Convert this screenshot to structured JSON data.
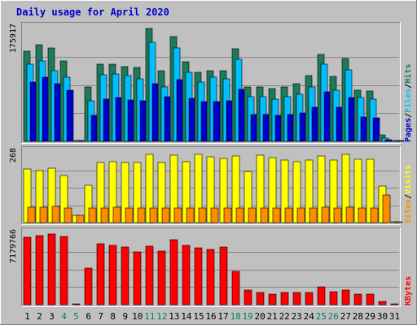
{
  "chart_data": {
    "type": "bar",
    "title": "Daily usage for April 2020",
    "categories": [
      "1",
      "2",
      "3",
      "4",
      "5",
      "6",
      "7",
      "8",
      "9",
      "10",
      "11",
      "12",
      "13",
      "14",
      "15",
      "16",
      "17",
      "18",
      "19",
      "20",
      "21",
      "22",
      "23",
      "24",
      "25",
      "26",
      "27",
      "28",
      "29",
      "30",
      "31"
    ],
    "weekend_days": [
      "4",
      "5",
      "11",
      "12",
      "18",
      "19",
      "25",
      "26"
    ],
    "panels": [
      {
        "id": "hits",
        "ymax_label": "175917",
        "ylim": [
          0,
          175917
        ],
        "right_labels": [
          "Pages",
          "/",
          "Files",
          "/",
          "Hits"
        ],
        "series": [
          {
            "name": "Hits",
            "color": "#1e7a5a",
            "values": [
              140000,
              150000,
              145000,
              125000,
              0,
              85000,
              120000,
              120000,
              117000,
              115000,
              175917,
              110000,
              163000,
              124000,
              108000,
              110000,
              110000,
              144000,
              85000,
              85000,
              82000,
              85000,
              90000,
              103000,
              135000,
              101000,
              129000,
              80000,
              78000,
              10000,
              0
            ]
          },
          {
            "name": "Files",
            "color": "#00bfff",
            "values": [
              120000,
              125000,
              110000,
              100000,
              0,
              63000,
              104000,
              105000,
              102000,
              98000,
              154000,
              85000,
              146000,
              108000,
              92000,
              100000,
              98000,
              128000,
              70000,
              70000,
              66000,
              70000,
              73000,
              85000,
              120000,
              80000,
              112000,
              68000,
              66000,
              5000,
              0
            ]
          },
          {
            "name": "Pages",
            "color": "#0000cd",
            "values": [
              93000,
              100000,
              90000,
              80000,
              0,
              40000,
              66000,
              68000,
              65000,
              63000,
              90000,
              70000,
              96000,
              67000,
              62000,
              62000,
              63000,
              81000,
              42000,
              42000,
              40000,
              42000,
              44000,
              53000,
              77000,
              53000,
              68000,
              38000,
              37000,
              2000,
              0
            ]
          }
        ]
      },
      {
        "id": "visits",
        "ymax_label": "268",
        "ylim": [
          0,
          268
        ],
        "right_labels": [
          "Sites",
          "/",
          "Visits"
        ],
        "series": [
          {
            "name": "Visits",
            "color": "#ffff00",
            "values": [
              205,
              200,
              210,
              180,
              28,
              143,
              230,
              233,
              230,
              230,
              263,
              230,
              260,
              235,
              262,
              253,
              245,
              255,
              195,
              258,
              250,
              240,
              233,
              240,
              255,
              240,
              263,
              243,
              243,
              140,
              0
            ]
          },
          {
            "name": "Sites",
            "color": "#ff8c00",
            "values": [
              58,
              60,
              62,
              55,
              28,
              55,
              55,
              58,
              55,
              55,
              55,
              55,
              55,
              55,
              55,
              55,
              55,
              57,
              55,
              55,
              55,
              55,
              55,
              55,
              58,
              55,
              58,
              55,
              55,
              105,
              0
            ]
          }
        ]
      },
      {
        "id": "kbytes",
        "ymax_label": "7179766",
        "ylim": [
          0,
          7179766
        ],
        "right_labels": [
          "KBytes"
        ],
        "series": [
          {
            "name": "KBytes",
            "color": "#ff0000",
            "values": [
              6850000,
              7000000,
              7179766,
              6950000,
              0,
              3750000,
              6150000,
              6000000,
              5850000,
              5350000,
              5950000,
              5450000,
              6600000,
              6050000,
              5750000,
              5600000,
              5850000,
              3400000,
              1450000,
              1200000,
              1100000,
              1200000,
              1200000,
              1200000,
              1800000,
              1350000,
              1450000,
              1100000,
              1050000,
              300000,
              0
            ]
          }
        ]
      }
    ]
  },
  "colors": {
    "background": "#c0c0c0",
    "title": "#0000cd",
    "weekday_label": "#000000",
    "weekend_label": "#00805a"
  }
}
